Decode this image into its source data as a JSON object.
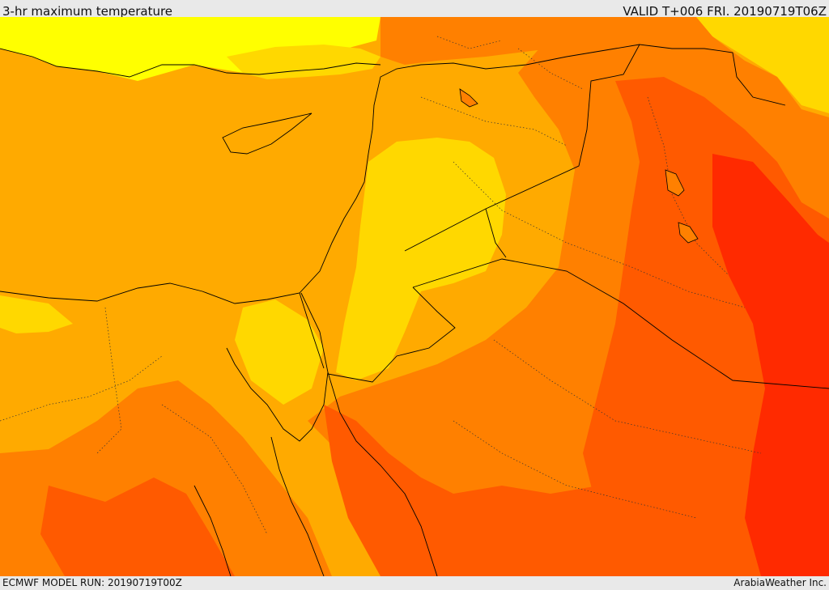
{
  "header": {
    "title": "3-hr maximum temperature",
    "valid_time": "VALID T+006 FRI. 20190719T06Z"
  },
  "footer": {
    "model_run": "ECMWF MODEL RUN: 20190719T00Z",
    "credit": "ArabiaWeather Inc."
  },
  "colors": {
    "hot_light_yellow": "#ffff00",
    "warm_yellow": "#ffd800",
    "warm_orange": "#ffaa00",
    "hot_orange": "#ff8000",
    "very_hot_red_orange": "#ff5a00",
    "extreme_red": "#ff2a00",
    "border_line": "#000000"
  }
}
